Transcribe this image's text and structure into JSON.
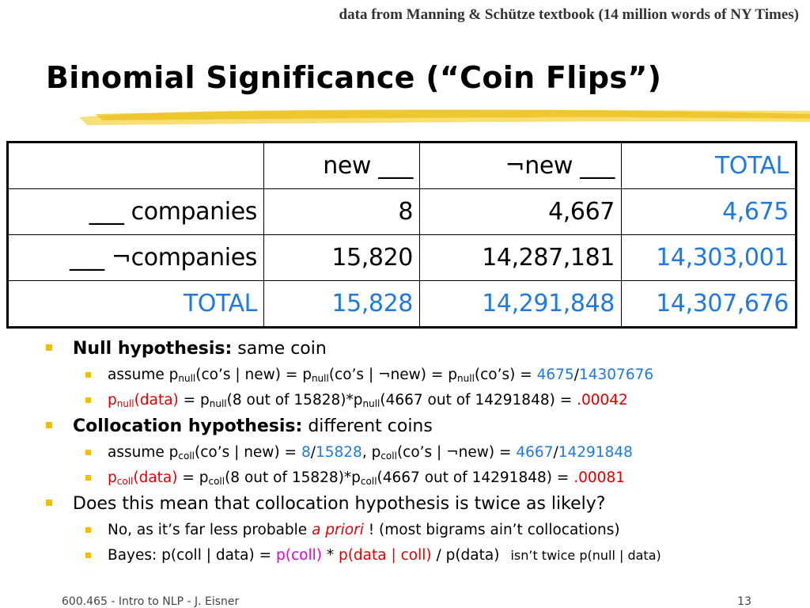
{
  "source_note": "data from Manning & Schütze textbook (14 million words of NY Times)",
  "title": "Binomial Significance (“Coin Flips”)",
  "table": {
    "header": [
      "",
      "new ___",
      "¬new ___",
      "TOTAL"
    ],
    "rows": [
      [
        "___ companies",
        "8",
        "4,667",
        "4,675"
      ],
      [
        "___ ¬companies",
        "15,820",
        "14,287,181",
        "14,303,001"
      ],
      [
        "TOTAL",
        "15,828",
        "14,291,848",
        "14,307,676"
      ]
    ]
  },
  "b1": {
    "bold": "Null hypothesis:",
    "rest": " same coin"
  },
  "b1a": {
    "t1": "assume p",
    "s1": "null",
    "t2": "(co’s | new) = p",
    "s2": "null",
    "t3": "(co’s | ¬new) = p",
    "s3": "null",
    "t4": "(co’s) = ",
    "num": "4675",
    "slash": "/",
    "den": "14307676"
  },
  "b1b": {
    "p": "p",
    "s1": "null",
    "data": "(data)",
    "t1": " = p",
    "s2": "null",
    "t2": "(8 out of 15828)*p",
    "s3": "null",
    "t3": "(4667 out of 14291848) = ",
    "result": ".00042"
  },
  "b2": {
    "bold": "Collocation hypothesis:",
    "rest": " different coins"
  },
  "b2a": {
    "t1": "assume p",
    "s1": "coll",
    "t2": "(co’s | new) = ",
    "n1": "8",
    "sl1": "/",
    "d1": "15828",
    "t3": ", p",
    "s2": "coll",
    "t4": "(co’s | ¬new) = ",
    "n2": "4667",
    "sl2": "/",
    "d2": "14291848"
  },
  "b2b": {
    "p": "p",
    "s1": "coll",
    "data": "(data)",
    "t1": " = p",
    "s2": "coll",
    "t2": "(8 out of 15828)*p",
    "s3": "coll",
    "t3": "(4667 out of 14291848) = ",
    "result": ".00081"
  },
  "b3": {
    "text": "Does this mean that collocation hypothesis is twice as likely?"
  },
  "b3a": {
    "t1": "No, as it’s far less probable ",
    "italic": "a priori",
    "t2": " ! (most bigrams ain’t collocations)"
  },
  "b3b": {
    "t1": "Bayes: p(coll | data) = ",
    "pcoll": "p(coll)",
    "t2": " * ",
    "pdatacoll": "p(data | coll)",
    "t3": " / p(data)",
    "note": "isn’t twice p(null | data)"
  },
  "footer": {
    "left": "600.465 - Intro to NLP - J. Eisner",
    "page": "13"
  },
  "colors": {
    "accent_blue": "#1f7ae0",
    "red": "#e00000",
    "magenta": "#e000e0",
    "bullet": "#f0c000"
  }
}
